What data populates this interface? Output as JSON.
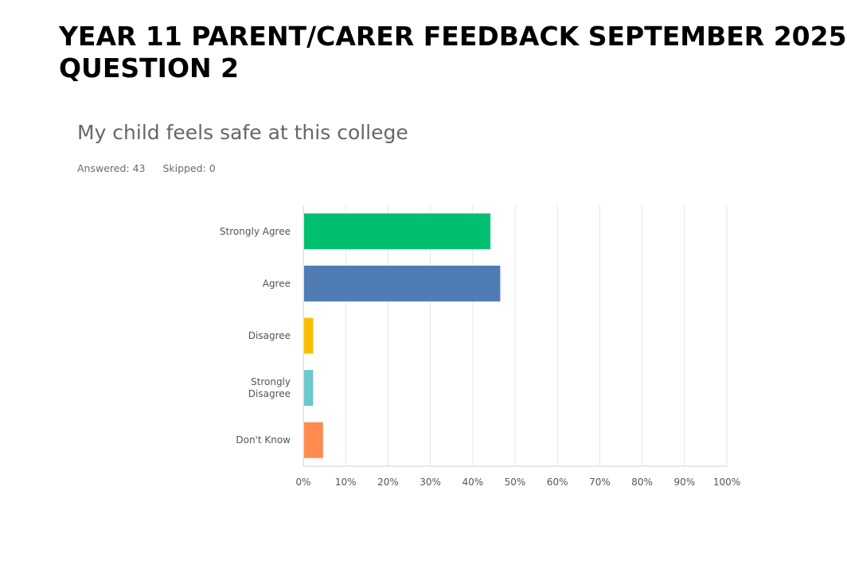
{
  "slide": {
    "title_line1": "YEAR 11 PARENT/CARER FEEDBACK SEPTEMBER 2025",
    "title_line2": "QUESTION 2"
  },
  "survey": {
    "question": "My child feels safe at this college",
    "answered_label": "Answered: 43",
    "skipped_label": "Skipped: 0"
  },
  "chart_data": {
    "type": "bar",
    "orientation": "horizontal",
    "title": "My child feels safe at this college",
    "xlabel": "",
    "ylabel": "",
    "xlim": [
      0,
      100
    ],
    "grid": true,
    "categories": [
      {
        "label": [
          "Strongly Agree"
        ],
        "value": 44.19,
        "color": "#00bf6f"
      },
      {
        "label": [
          "Agree"
        ],
        "value": 46.51,
        "color": "#507cb6"
      },
      {
        "label": [
          "Disagree"
        ],
        "value": 2.33,
        "color": "#f9be00"
      },
      {
        "label": [
          "Strongly",
          "Disagree"
        ],
        "value": 2.33,
        "color": "#6bc8cd"
      },
      {
        "label": [
          "Don't Know"
        ],
        "value": 4.65,
        "color": "#ff8b4f"
      }
    ],
    "ticks": [
      "0%",
      "10%",
      "20%",
      "30%",
      "40%",
      "50%",
      "60%",
      "70%",
      "80%",
      "90%",
      "100%"
    ]
  }
}
